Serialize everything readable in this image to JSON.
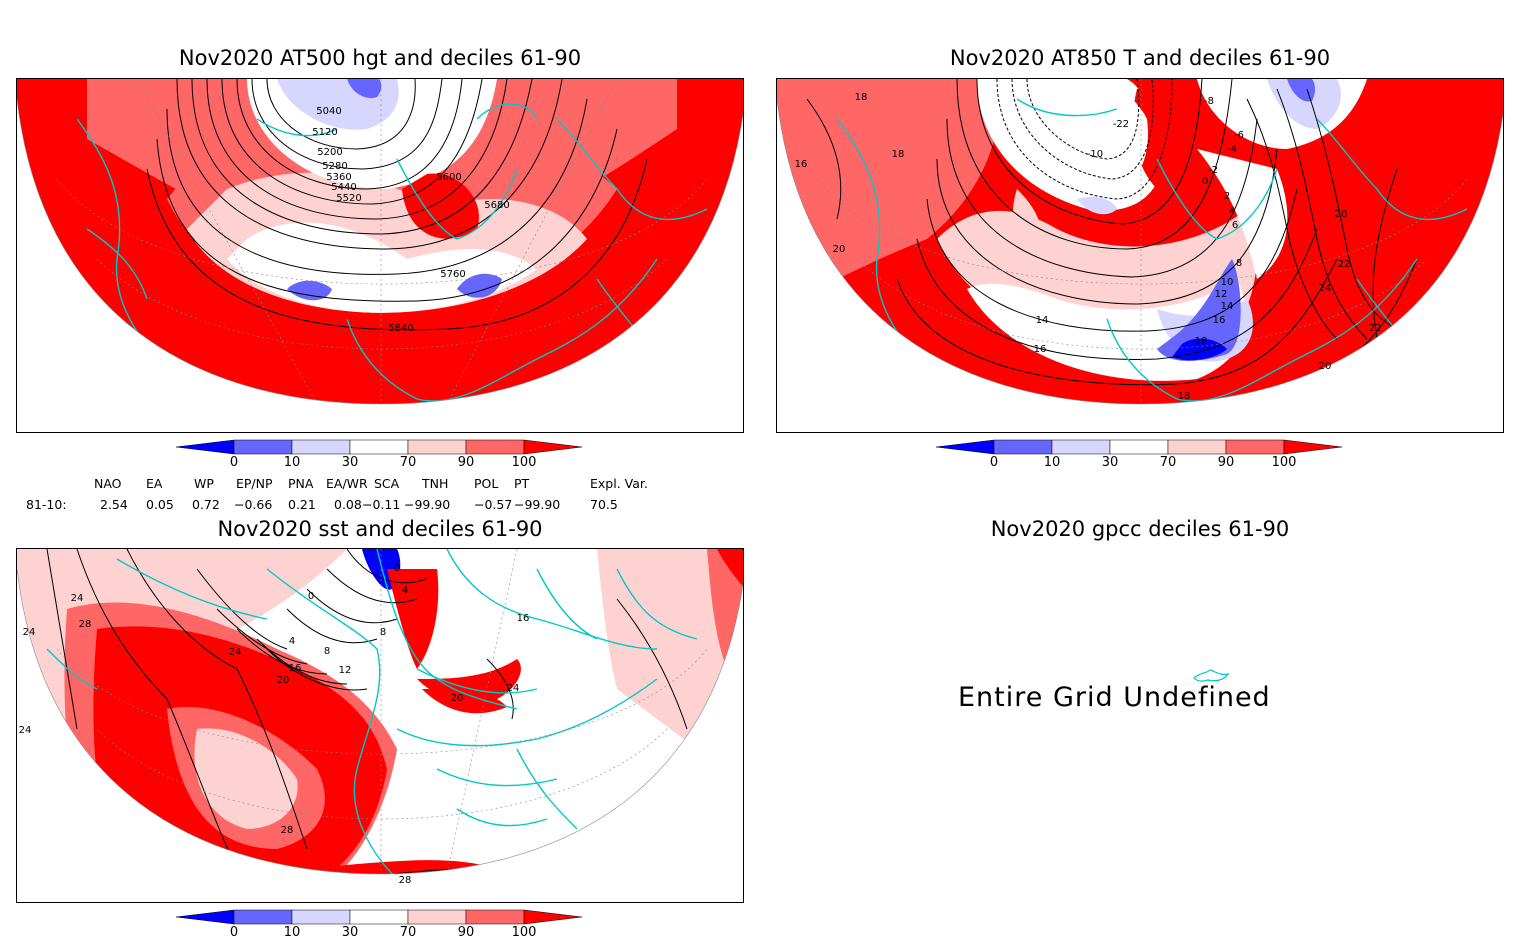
{
  "panels": {
    "hgt500": {
      "title": "Nov2020 AT500 hgt and deciles 61-90",
      "contour_labels": [
        "5040",
        "5120",
        "5200",
        "5280",
        "5360",
        "5440",
        "5520",
        "5600",
        "5680",
        "5760",
        "5840"
      ]
    },
    "t850": {
      "title": "Nov2020 AT850 T and deciles 61-90",
      "contour_labels": [
        "18",
        "18",
        "16",
        "20",
        "-8",
        "-6",
        "-4",
        "-22",
        "-10",
        "-2",
        "2",
        "0",
        "4",
        "6",
        "8",
        "10",
        "12",
        "14",
        "16",
        "18",
        "14",
        "16",
        "18",
        "20",
        "22",
        "24",
        "22",
        "20"
      ]
    },
    "sst": {
      "title": "Nov2020 sst and deciles 61-90",
      "contour_labels": [
        "24",
        "24",
        "28",
        "24",
        "20",
        "16",
        "12",
        "8",
        "4",
        "0",
        "0",
        "4",
        "8",
        "16",
        "24",
        "20",
        "24",
        "28",
        "28"
      ]
    },
    "gpcc": {
      "title": "Nov2020 gpcc deciles 61-90",
      "message": "Entire Grid Undefined"
    }
  },
  "colorbar": {
    "ticks": [
      "0",
      "10",
      "30",
      "70",
      "90",
      "100"
    ],
    "colors": {
      "lt_0": "#0000ff",
      "0_10": "#6666ff",
      "10_30": "#d6d6ff",
      "30_70": "#ffffff",
      "70_90": "#ffd2d2",
      "90_100": "#ff6666",
      "gt_100": "#ff0000"
    }
  },
  "indices": {
    "row_label": "81-10:",
    "headers": [
      "NAO",
      "EA",
      "WP",
      "EP/NP",
      "PNA",
      "EA/WR",
      "SCA",
      "TNH",
      "POL",
      "PT",
      "Expl. Var."
    ],
    "values": [
      "2.54",
      "0.05",
      "0.72",
      "−0.66",
      "0.21",
      "0.08",
      "−0.11",
      "−99.90",
      "−0.57",
      "−99.90",
      "70.5"
    ]
  },
  "map_colors": {
    "coast": "#00c8c8",
    "contour": "#000000"
  }
}
